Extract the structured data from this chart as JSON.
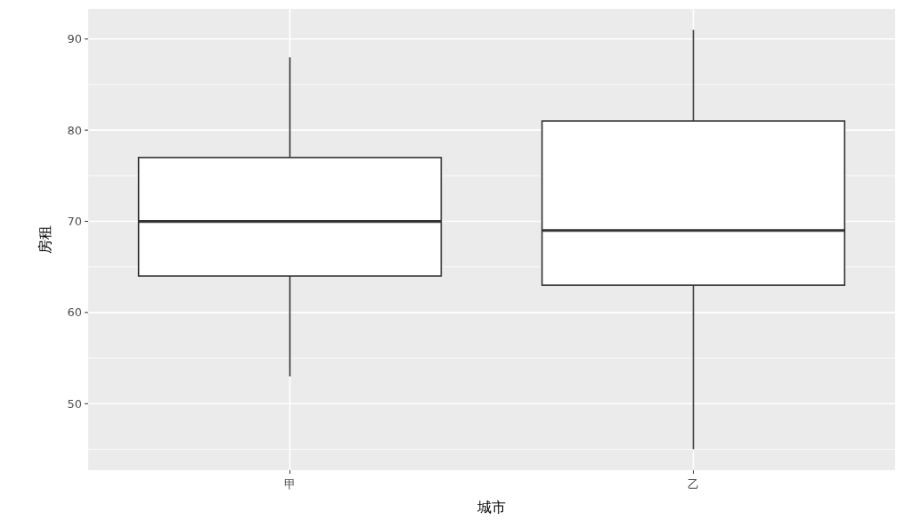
{
  "chart_data": {
    "type": "box",
    "xlabel": "城市",
    "ylabel": "房租",
    "categories": [
      "甲",
      "乙"
    ],
    "boxes": [
      {
        "low": 53,
        "q1": 64,
        "median": 70,
        "q3": 77,
        "high": 88
      },
      {
        "low": 45,
        "q1": 63,
        "median": 69,
        "q3": 81,
        "high": 91
      }
    ],
    "ylim": [
      42.7,
      93.3
    ],
    "yticks": [
      {
        "value": 45,
        "label": null
      },
      50,
      {
        "value": 55,
        "label": null
      },
      60,
      {
        "value": 65,
        "label": null
      },
      70,
      {
        "value": 75,
        "label": null
      },
      80,
      {
        "value": 85,
        "label": null
      },
      90
    ],
    "grid": true
  }
}
